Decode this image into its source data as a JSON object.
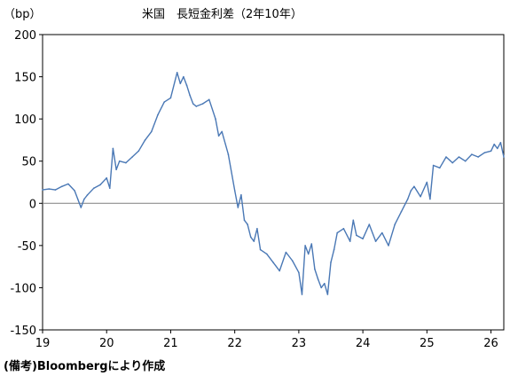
{
  "chart_data": {
    "type": "line",
    "title": "米国　長短金利差（2年10年）",
    "unit_label": "（bp）",
    "xlabel": "",
    "ylabel": "",
    "ylim": [
      -150,
      200
    ],
    "xlim": [
      19,
      26.2
    ],
    "y_ticks": [
      200,
      150,
      100,
      50,
      0,
      -50,
      -100,
      -150
    ],
    "x_ticks": [
      19,
      20,
      21,
      22,
      23,
      24,
      25,
      26
    ],
    "y_tick_labels": [
      "200",
      "150",
      "100",
      "50",
      "0",
      "-50",
      "-100",
      "-150"
    ],
    "x_tick_labels": [
      "19",
      "20",
      "21",
      "22",
      "23",
      "24",
      "25",
      "26"
    ],
    "grid": false,
    "zero_line": true,
    "line_color": "#4a78b5",
    "series": [
      {
        "x": [
          19.0,
          19.1,
          19.2,
          19.3,
          19.4,
          19.5,
          19.55,
          19.6,
          19.65,
          19.7,
          19.8,
          19.9,
          20.0,
          20.05,
          20.1,
          20.15,
          20.2,
          20.3,
          20.4,
          20.5,
          20.6,
          20.7,
          20.8,
          20.9,
          21.0,
          21.1,
          21.15,
          21.2,
          21.25,
          21.3,
          21.35,
          21.4,
          21.5,
          21.6,
          21.7,
          21.75,
          21.8,
          21.9,
          22.0,
          22.05,
          22.1,
          22.15,
          22.2,
          22.25,
          22.3,
          22.35,
          22.4,
          22.5,
          22.6,
          22.7,
          22.8,
          22.9,
          23.0,
          23.05,
          23.1,
          23.15,
          23.2,
          23.25,
          23.3,
          23.35,
          23.4,
          23.45,
          23.5,
          23.55,
          23.6,
          23.7,
          23.8,
          23.85,
          23.9,
          24.0,
          24.1,
          24.2,
          24.3,
          24.4,
          24.5,
          24.6,
          24.7,
          24.75,
          24.8,
          24.9,
          25.0,
          25.05,
          25.1,
          25.2,
          25.3,
          25.4,
          25.5,
          25.6,
          25.7,
          25.8,
          25.9,
          26.0,
          26.05,
          26.1,
          26.15,
          26.2
        ],
        "y": [
          16,
          17,
          16,
          20,
          23,
          15,
          5,
          -5,
          5,
          10,
          18,
          22,
          30,
          18,
          65,
          40,
          50,
          48,
          55,
          62,
          75,
          85,
          105,
          120,
          125,
          155,
          142,
          150,
          140,
          128,
          118,
          115,
          118,
          123,
          100,
          80,
          85,
          58,
          15,
          -5,
          10,
          -20,
          -25,
          -40,
          -45,
          -30,
          -55,
          -60,
          -70,
          -80,
          -58,
          -68,
          -82,
          -108,
          -50,
          -60,
          -48,
          -78,
          -90,
          -100,
          -95,
          -108,
          -70,
          -55,
          -35,
          -30,
          -45,
          -20,
          -38,
          -42,
          -25,
          -45,
          -35,
          -50,
          -25,
          -10,
          5,
          15,
          20,
          8,
          25,
          5,
          45,
          42,
          55,
          48,
          55,
          50,
          58,
          55,
          60,
          62,
          70,
          65,
          72,
          55
        ]
      }
    ]
  },
  "footer": {
    "note": "(備考)Bloombergにより作成"
  }
}
